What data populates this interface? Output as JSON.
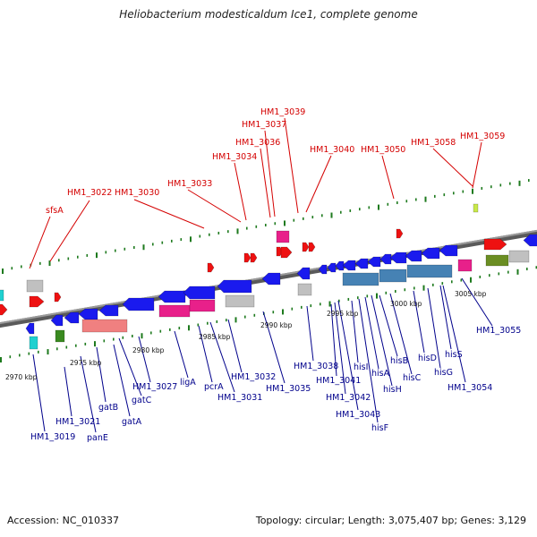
{
  "title": "Heliobacterium modesticaldum Ice1, complete genome",
  "footer": {
    "accession": "Accession: NC_010337",
    "summary": "Topology: circular; Length: 3,075,407 bp; Genes: 3,129"
  },
  "colors": {
    "forward_label": "#d40000",
    "reverse_label": "#00008b",
    "forward_gene": "#ee1111",
    "reverse_gene": "#1a1aee",
    "rrna": "#4682b4",
    "trna": "#e8208a",
    "pseudo": "#c0c0c0",
    "backbone": "#707070",
    "tick": "#1e7a1e"
  },
  "kbp_marks": [
    "2970 kbp",
    "2975 kbp",
    "2980 kbp",
    "2985 kbp",
    "2990 kbp",
    "2995 kbp",
    "3000 kbp",
    "3005 kbp"
  ],
  "labels_top": [
    {
      "text": "sfsA"
    },
    {
      "text": "HM1_3022"
    },
    {
      "text": "HM1_3030"
    },
    {
      "text": "HM1_3033"
    },
    {
      "text": "HM1_3034"
    },
    {
      "text": "HM1_3036"
    },
    {
      "text": "HM1_3037"
    },
    {
      "text": "HM1_3039"
    },
    {
      "text": "HM1_3040"
    },
    {
      "text": "HM1_3050"
    },
    {
      "text": "HM1_3058"
    },
    {
      "text": "HM1_3059"
    }
  ],
  "labels_bottom": [
    {
      "text": "HM1_3019"
    },
    {
      "text": "HM1_3021"
    },
    {
      "text": "panE"
    },
    {
      "text": "gatB"
    },
    {
      "text": "gatA"
    },
    {
      "text": "gatC"
    },
    {
      "text": "HM1_3027"
    },
    {
      "text": "ligA"
    },
    {
      "text": "pcrA"
    },
    {
      "text": "HM1_3031"
    },
    {
      "text": "HM1_3032"
    },
    {
      "text": "HM1_3035"
    },
    {
      "text": "HM1_3038"
    },
    {
      "text": "HM1_3041"
    },
    {
      "text": "HM1_3042"
    },
    {
      "text": "HM1_3043"
    },
    {
      "text": "hisI"
    },
    {
      "text": "hisF"
    },
    {
      "text": "hisA"
    },
    {
      "text": "hisH"
    },
    {
      "text": "hisB"
    },
    {
      "text": "hisC"
    },
    {
      "text": "hisD"
    },
    {
      "text": "hisG"
    },
    {
      "text": "hisS"
    },
    {
      "text": "HM1_3054"
    },
    {
      "text": "HM1_3055"
    }
  ]
}
